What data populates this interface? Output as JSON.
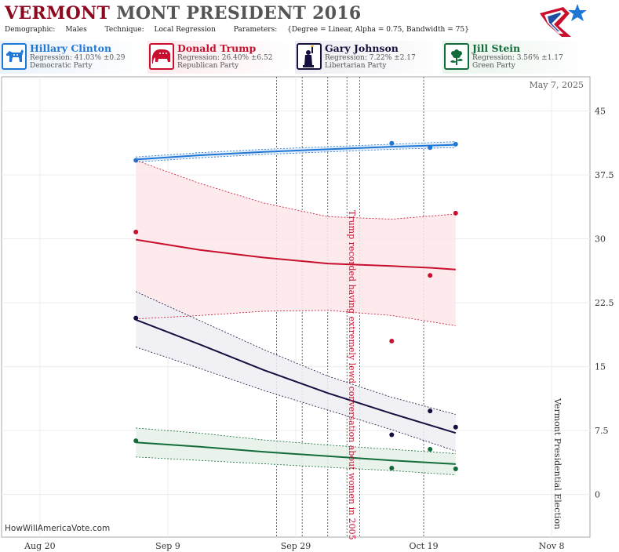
{
  "header": {
    "title_part1": "VERMONT",
    "title_part2": "MONT PRESIDENT 2016",
    "demographic_label": "Demographic:",
    "demographic": "Males",
    "technique_label": "Technique:",
    "technique": "Local Regression",
    "parameters_label": "Parameters:",
    "parameters": "{Degree = Linear, Alpha = 0.75, Bandwidth = 75}"
  },
  "candidates": [
    {
      "name": "Hillary Clinton",
      "regression": "Regression: 41.03% ±0.29",
      "party": "Democratic Party",
      "color": "#1f77d6",
      "icon": "donkey-icon"
    },
    {
      "name": "Donald Trump",
      "regression": "Regression: 26.40% ±6.52",
      "party": "Republican Party",
      "color": "#c8102e",
      "icon": "elephant-icon"
    },
    {
      "name": "Gary Johnson",
      "regression": "Regression: 7.22% ±2.17",
      "party": "Libertarian Party",
      "color": "#15103f",
      "icon": "statue-of-liberty-icon"
    },
    {
      "name": "Jill Stein",
      "regression": "Regression: 3.56% ±1.17",
      "party": "Green Party",
      "color": "#136b3a",
      "icon": "flower-icon"
    }
  ],
  "footer": {
    "credit": "HowWillAmericaVote.com"
  },
  "chart_data": {
    "type": "line",
    "date_stamp": "May 7, 2025",
    "x_ticks": [
      "Aug 20",
      "Sep 9",
      "Sep 29",
      "Oct 19",
      "Nov 8"
    ],
    "x_tick_dates": [
      "2016-08-20",
      "2016-09-09",
      "2016-09-29",
      "2016-10-19",
      "2016-11-08"
    ],
    "y_ticks": [
      "0",
      "7.5",
      "15",
      "22.5",
      "30",
      "37.5",
      "45"
    ],
    "y_tick_values": [
      0,
      7.5,
      15,
      22.5,
      30,
      37.5,
      45
    ],
    "ylim": [
      -5,
      49
    ],
    "xlim": [
      "2016-08-14",
      "2016-11-14"
    ],
    "grid": true,
    "event_lines": [
      "2016-09-26",
      "2016-09-30",
      "2016-10-04",
      "2016-10-07",
      "2016-10-09",
      "2016-10-19"
    ],
    "annotations": [
      {
        "date": "2016-10-07",
        "text": "Trump recorded having extremely lewd conversation about women in 2005",
        "color": "#c8102e"
      },
      {
        "date": "2016-11-08",
        "text": "Vermont Presidential Election",
        "color": "#333333"
      }
    ],
    "series": [
      {
        "name": "Hillary Clinton",
        "color": "#1f77d6",
        "band_color": "#dfe9f7",
        "line": [
          [
            "2016-09-04",
            39.3
          ],
          [
            "2016-09-14",
            39.8
          ],
          [
            "2016-09-24",
            40.2
          ],
          [
            "2016-10-04",
            40.5
          ],
          [
            "2016-10-14",
            40.8
          ],
          [
            "2016-10-24",
            41.03
          ]
        ],
        "upper": [
          [
            "2016-09-04",
            39.6
          ],
          [
            "2016-09-14",
            40.1
          ],
          [
            "2016-09-24",
            40.5
          ],
          [
            "2016-10-04",
            40.8
          ],
          [
            "2016-10-14",
            41.1
          ],
          [
            "2016-10-24",
            41.4
          ]
        ],
        "lower": [
          [
            "2016-09-04",
            39.0
          ],
          [
            "2016-09-14",
            39.5
          ],
          [
            "2016-09-24",
            39.9
          ],
          [
            "2016-10-04",
            40.2
          ],
          [
            "2016-10-14",
            40.5
          ],
          [
            "2016-10-24",
            40.7
          ]
        ],
        "points": [
          [
            "2016-09-04",
            39.2
          ],
          [
            "2016-10-14",
            41.2
          ],
          [
            "2016-10-20",
            40.7
          ],
          [
            "2016-10-24",
            41.1
          ]
        ]
      },
      {
        "name": "Donald Trump",
        "color": "#c8102e",
        "band_color": "#fbe6ea",
        "line": [
          [
            "2016-09-04",
            29.9
          ],
          [
            "2016-09-14",
            28.7
          ],
          [
            "2016-09-24",
            27.8
          ],
          [
            "2016-10-04",
            27.1
          ],
          [
            "2016-10-14",
            26.8
          ],
          [
            "2016-10-20",
            26.6
          ],
          [
            "2016-10-24",
            26.4
          ]
        ],
        "upper": [
          [
            "2016-09-04",
            39.2
          ],
          [
            "2016-09-14",
            36.5
          ],
          [
            "2016-09-24",
            34.2
          ],
          [
            "2016-10-04",
            32.6
          ],
          [
            "2016-10-14",
            32.3
          ],
          [
            "2016-10-24",
            32.9
          ]
        ],
        "lower": [
          [
            "2016-09-04",
            20.6
          ],
          [
            "2016-09-14",
            21.0
          ],
          [
            "2016-09-24",
            21.5
          ],
          [
            "2016-10-04",
            21.6
          ],
          [
            "2016-10-14",
            21.0
          ],
          [
            "2016-10-24",
            19.8
          ]
        ],
        "points": [
          [
            "2016-09-04",
            30.8
          ],
          [
            "2016-10-14",
            18.0
          ],
          [
            "2016-10-20",
            25.7
          ],
          [
            "2016-10-24",
            33.0
          ]
        ]
      },
      {
        "name": "Gary Johnson",
        "color": "#15103f",
        "band_color": "#eeeef3",
        "line": [
          [
            "2016-09-04",
            20.5
          ],
          [
            "2016-09-14",
            17.6
          ],
          [
            "2016-09-24",
            14.6
          ],
          [
            "2016-10-04",
            11.9
          ],
          [
            "2016-10-14",
            9.5
          ],
          [
            "2016-10-24",
            7.22
          ]
        ],
        "upper": [
          [
            "2016-09-04",
            23.8
          ],
          [
            "2016-09-14",
            20.4
          ],
          [
            "2016-09-24",
            17.0
          ],
          [
            "2016-10-04",
            13.9
          ],
          [
            "2016-10-14",
            11.4
          ],
          [
            "2016-10-24",
            9.4
          ]
        ],
        "lower": [
          [
            "2016-09-04",
            17.3
          ],
          [
            "2016-09-14",
            14.8
          ],
          [
            "2016-09-24",
            12.2
          ],
          [
            "2016-10-04",
            9.9
          ],
          [
            "2016-10-14",
            7.6
          ],
          [
            "2016-10-24",
            5.1
          ]
        ],
        "points": [
          [
            "2016-09-04",
            20.7
          ],
          [
            "2016-10-14",
            7.0
          ],
          [
            "2016-10-20",
            9.8
          ],
          [
            "2016-10-24",
            7.9
          ]
        ]
      },
      {
        "name": "Jill Stein",
        "color": "#136b3a",
        "band_color": "#e5f1e8",
        "line": [
          [
            "2016-09-04",
            6.1
          ],
          [
            "2016-09-14",
            5.6
          ],
          [
            "2016-09-24",
            5.0
          ],
          [
            "2016-10-04",
            4.5
          ],
          [
            "2016-10-14",
            4.0
          ],
          [
            "2016-10-24",
            3.56
          ]
        ],
        "upper": [
          [
            "2016-09-04",
            7.8
          ],
          [
            "2016-09-14",
            7.2
          ],
          [
            "2016-09-24",
            6.4
          ],
          [
            "2016-10-04",
            5.8
          ],
          [
            "2016-10-14",
            5.3
          ],
          [
            "2016-10-24",
            4.8
          ]
        ],
        "lower": [
          [
            "2016-09-04",
            4.4
          ],
          [
            "2016-09-14",
            4.0
          ],
          [
            "2016-09-24",
            3.6
          ],
          [
            "2016-10-04",
            3.2
          ],
          [
            "2016-10-14",
            2.8
          ],
          [
            "2016-10-24",
            2.3
          ]
        ],
        "points": [
          [
            "2016-09-04",
            6.3
          ],
          [
            "2016-10-14",
            3.1
          ],
          [
            "2016-10-20",
            5.3
          ],
          [
            "2016-10-24",
            3.0
          ]
        ]
      }
    ]
  }
}
